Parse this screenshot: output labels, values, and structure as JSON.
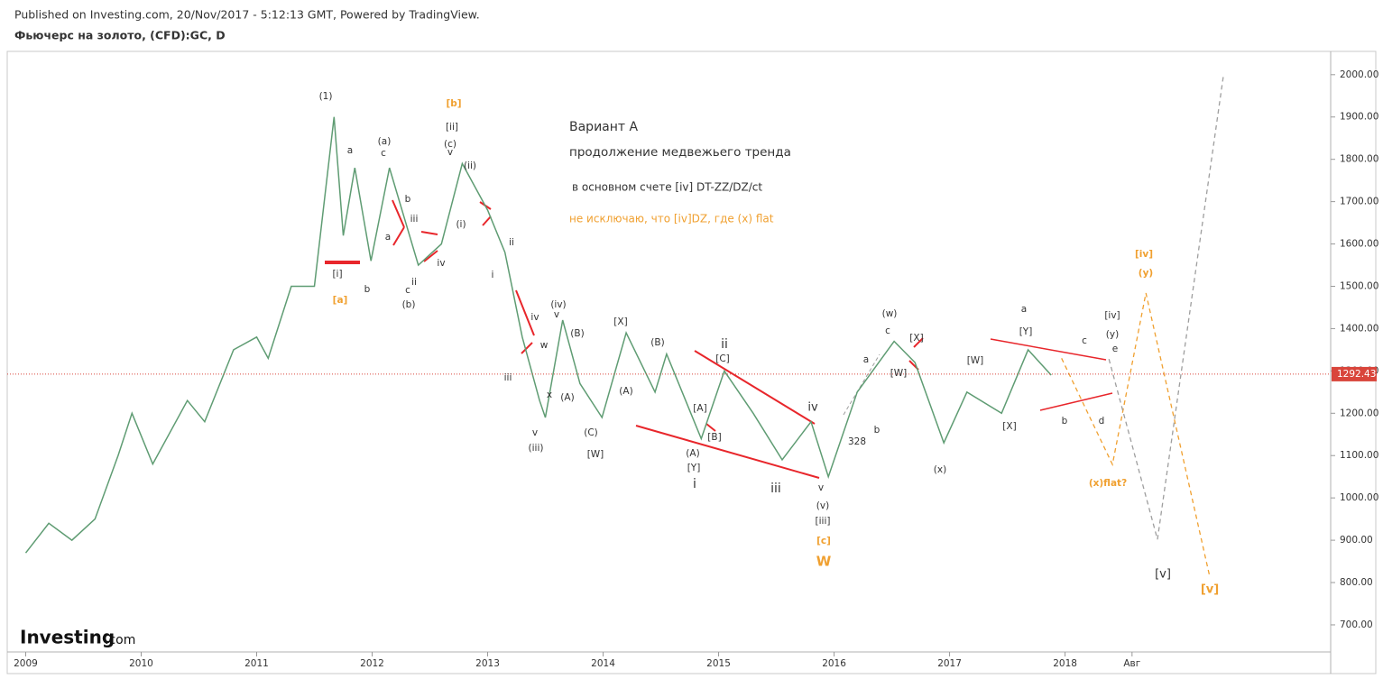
{
  "chart_data": {
    "type": "line",
    "source": "Published on Investing.com, 20/Nov/2017 - 5:12:13 GMT, Powered by TradingView.",
    "title": "Фьючерс на золото, (CFD):GC, D",
    "logo": {
      "name": "Investing",
      "suffix": ".com"
    },
    "color": "#5f9c73",
    "x": [
      2009.0,
      2009.2,
      2009.4,
      2009.6,
      2009.8,
      2009.92,
      2010.1,
      2010.4,
      2010.55,
      2010.8,
      2011.0,
      2011.1,
      2011.3,
      2011.5,
      2011.67,
      2011.75,
      2011.85,
      2011.99,
      2012.15,
      2012.4,
      2012.6,
      2012.78,
      2013.0,
      2013.15,
      2013.3,
      2013.45,
      2013.5,
      2013.65,
      2013.8,
      2013.99,
      2014.2,
      2014.45,
      2014.55,
      2014.85,
      2015.05,
      2015.3,
      2015.55,
      2015.8,
      2015.95,
      2016.2,
      2016.52,
      2016.7,
      2016.95,
      2017.15,
      2017.45,
      2017.68,
      2017.88
    ],
    "values": [
      870,
      940,
      900,
      950,
      1100,
      1200,
      1080,
      1230,
      1180,
      1350,
      1380,
      1330,
      1500,
      1500,
      1900,
      1620,
      1780,
      1560,
      1780,
      1550,
      1600,
      1790,
      1680,
      1580,
      1380,
      1230,
      1190,
      1420,
      1270,
      1190,
      1390,
      1250,
      1340,
      1140,
      1300,
      1200,
      1090,
      1180,
      1050,
      1250,
      1370,
      1320,
      1130,
      1250,
      1200,
      1350,
      1290
    ],
    "projections": [
      {
        "color": "#f0a030",
        "x": [
          2017.97,
          2018.41,
          2018.7,
          2019.25
        ],
        "values": [
          1330,
          1079,
          1484,
          817
        ]
      },
      {
        "color": "#9e9e9e",
        "x": [
          2018.38,
          2018.8,
          2019.37
        ],
        "values": [
          1328,
          902,
          1996
        ]
      }
    ],
    "last_price": 1292.43,
    "xlim": [
      2008.84,
      2020.3
    ],
    "ylim": [
      636,
      2055
    ],
    "xticks": [
      2009,
      2010,
      2011,
      2012,
      2013,
      2014,
      2015,
      2016,
      2017,
      2018,
      {
        "value": 2018.58,
        "label": "Авг"
      }
    ],
    "yticks": [
      {
        "value": 2000,
        "label": "2000.00"
      },
      {
        "value": 1900,
        "label": "1900.00"
      },
      {
        "value": 1800,
        "label": "1800.00"
      },
      {
        "value": 1700,
        "label": "1700.00"
      },
      {
        "value": 1600,
        "label": "1600.00"
      },
      {
        "value": 1500,
        "label": "1500.00"
      },
      {
        "value": 1400,
        "label": "1400.00"
      },
      {
        "value": 1300,
        "label": "1300.00"
      },
      {
        "value": 1200,
        "label": "1200.00"
      },
      {
        "value": 1100,
        "label": "1100.00"
      },
      {
        "value": 1000,
        "label": "1000.00"
      },
      {
        "value": 900,
        "label": "900.00"
      },
      {
        "value": 800,
        "label": "800.00"
      },
      {
        "value": 700,
        "label": "700.00"
      }
    ],
    "annotations": [
      {
        "text": "(1)",
        "color": "#333"
      },
      {
        "text": "[b]",
        "color": "#f0a030"
      },
      {
        "text": "[ii]",
        "color": "#333"
      },
      {
        "text": "(c)",
        "color": "#333"
      },
      {
        "text": "v",
        "color": "#333"
      },
      {
        "text": "(a)",
        "color": "#333"
      },
      {
        "text": "c",
        "color": "#333"
      },
      {
        "text": "a",
        "color": "#333"
      },
      {
        "text": "(ii)",
        "color": "#333"
      },
      {
        "text": "b",
        "color": "#333"
      },
      {
        "text": "iii",
        "color": "#333"
      },
      {
        "text": "a",
        "color": "#333"
      },
      {
        "text": "(i)",
        "color": "#333"
      },
      {
        "text": "ii",
        "color": "#333"
      },
      {
        "text": "i",
        "color": "#333"
      },
      {
        "text": "iv",
        "color": "#333"
      },
      {
        "text": "[i]",
        "color": "#333"
      },
      {
        "text": "b",
        "color": "#333"
      },
      {
        "text": "ii",
        "color": "#333"
      },
      {
        "text": "c",
        "color": "#333"
      },
      {
        "text": "(b)",
        "color": "#333"
      },
      {
        "text": "[a]",
        "color": "#f0a030"
      },
      {
        "text": "Вариант А",
        "color": "#333"
      },
      {
        "text": "продолжение медвежьего тренда",
        "color": "#333"
      },
      {
        "text": "в основном счете [iv] DT-ZZ/DZ/ct",
        "color": "#333"
      },
      {
        "text": "не исключаю, что [iv]DZ, где (x) flat",
        "color": "#f0a030"
      },
      {
        "text": "(iv)",
        "color": "#333"
      },
      {
        "text": "iv",
        "color": "#333"
      },
      {
        "text": "v",
        "color": "#333"
      },
      {
        "text": "w",
        "color": "#333"
      },
      {
        "text": "(B)",
        "color": "#333"
      },
      {
        "text": "[X]",
        "color": "#333"
      },
      {
        "text": "(B)",
        "color": "#333"
      },
      {
        "text": "ii",
        "color": "#333"
      },
      {
        "text": "[C]",
        "color": "#333"
      },
      {
        "text": "x",
        "color": "#333"
      },
      {
        "text": "(A)",
        "color": "#333"
      },
      {
        "text": "(A)",
        "color": "#333"
      },
      {
        "text": "iii",
        "color": "#333"
      },
      {
        "text": "[A]",
        "color": "#333"
      },
      {
        "text": "[B]",
        "color": "#333"
      },
      {
        "text": "v",
        "color": "#333"
      },
      {
        "text": "(iii)",
        "color": "#333"
      },
      {
        "text": "(C)",
        "color": "#333"
      },
      {
        "text": "[W]",
        "color": "#333"
      },
      {
        "text": "(A)",
        "color": "#333"
      },
      {
        "text": "[Y]",
        "color": "#333"
      },
      {
        "text": "i",
        "color": "#333"
      },
      {
        "text": "iii",
        "color": "#333"
      },
      {
        "text": "iv",
        "color": "#333"
      },
      {
        "text": "v",
        "color": "#333"
      },
      {
        "text": "(v)",
        "color": "#333"
      },
      {
        "text": "[iii]",
        "color": "#333"
      },
      {
        "text": "[c]",
        "color": "#f0a030"
      },
      {
        "text": "W",
        "color": "#f0a030"
      },
      {
        "text": "328",
        "color": "#333"
      },
      {
        "text": "b",
        "color": "#333"
      },
      {
        "text": "a",
        "color": "#333"
      },
      {
        "text": "c",
        "color": "#333"
      },
      {
        "text": "(w)",
        "color": "#333"
      },
      {
        "text": "[X]",
        "color": "#333"
      },
      {
        "text": "[W]",
        "color": "#333"
      },
      {
        "text": "(x)",
        "color": "#333"
      },
      {
        "text": "[W]",
        "color": "#333"
      },
      {
        "text": "[X]",
        "color": "#333"
      },
      {
        "text": "a",
        "color": "#333"
      },
      {
        "text": "[Y]",
        "color": "#333"
      },
      {
        "text": "c",
        "color": "#333"
      },
      {
        "text": "b",
        "color": "#333"
      },
      {
        "text": "d",
        "color": "#333"
      },
      {
        "text": "e",
        "color": "#333"
      },
      {
        "text": "(y)",
        "color": "#333"
      },
      {
        "text": "[iv]",
        "color": "#333"
      },
      {
        "text": "[iv]",
        "color": "#f0a030"
      },
      {
        "text": "(y)",
        "color": "#f0a030"
      },
      {
        "text": "(x)flat?",
        "color": "#f0a030"
      },
      {
        "text": "[v]",
        "color": "#333"
      },
      {
        "text": "[v]",
        "color": "#f0a030"
      }
    ]
  }
}
